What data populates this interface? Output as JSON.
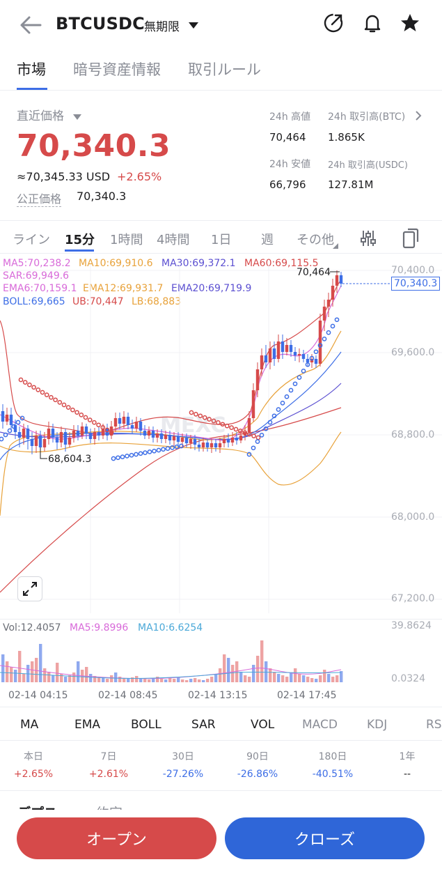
{
  "header": {
    "symbol": "BTCUSDC",
    "contract_type": "無期限"
  },
  "top_tabs": [
    "市場",
    "暗号資産情報",
    "取引ルール"
  ],
  "price": {
    "last_label": "直近価格",
    "last": "70,340.3",
    "usd_approx": "≈70,345.33 USD",
    "change": "+2.65%",
    "fair_label": "公正価格",
    "fair": "70,340.3"
  },
  "stats": {
    "high_label": "24h 高値",
    "high": "70,464",
    "vol_btc_label": "24h 取引高(BTC)",
    "vol_btc": "1.865K",
    "low_label": "24h 安値",
    "low": "66,796",
    "vol_usdc_label": "24h 取引高(USDC)",
    "vol_usdc": "127.81M"
  },
  "chart_tabs": [
    "ライン",
    "15分",
    "1時間",
    "4時間",
    "1日",
    "週",
    "その他"
  ],
  "indicators": {
    "ma5": "MA5:70,238.2",
    "ma10": "MA10:69,910.6",
    "ma30": "MA30:69,372.1",
    "ma60": "MA60:69,115.5",
    "sar": "SAR:69,949.6",
    "ema6": "EMA6:70,159.1",
    "ema12": "EMA12:69,931.7",
    "ema20": "EMA20:69,719.9",
    "boll": "BOLL:69,665",
    "ub": "UB:70,447",
    "lb": "LB:68,883"
  },
  "chart": {
    "y_ticks": [
      "70,400.0",
      "69,600.0",
      "68,800.0",
      "68,000.0",
      "67,200.0"
    ],
    "current_price_tag": "70,340.3",
    "high_marker": "70,464",
    "low_marker": "68,604.3",
    "x_ticks": [
      "02-14 04:15",
      "02-14 08:45",
      "02-14 13:15",
      "02-14 17:45"
    ],
    "watermark": "MEXC"
  },
  "volume": {
    "vol": "Vol:12.4057",
    "ma5": "MA5:9.8996",
    "ma10": "MA10:6.6254",
    "max": "39.8624",
    "min": "0.0324"
  },
  "indicator_tabs": [
    "MA",
    "EMA",
    "BOLL",
    "SAR",
    "VOL",
    "MACD",
    "KDJ",
    "RS"
  ],
  "performance": [
    {
      "label": "本日",
      "value": "+2.65%"
    },
    {
      "label": "7日",
      "value": "+2.61%"
    },
    {
      "label": "30日",
      "value": "-27.26%"
    },
    {
      "label": "90日",
      "value": "-26.86%"
    },
    {
      "label": "180日",
      "value": "-40.51%"
    },
    {
      "label": "1年",
      "value": "--"
    }
  ],
  "bottom_tabs": [
    "デプス",
    "約定"
  ],
  "buttons": {
    "open": "オープン",
    "close": "クローズ"
  },
  "colors": {
    "red": "#d64a4a",
    "blue": "#3d6ee6",
    "ma5": "#d86ad9",
    "ma10": "#e8a23a",
    "ma30": "#5b4fd1",
    "ma60": "#d64a4a"
  }
}
